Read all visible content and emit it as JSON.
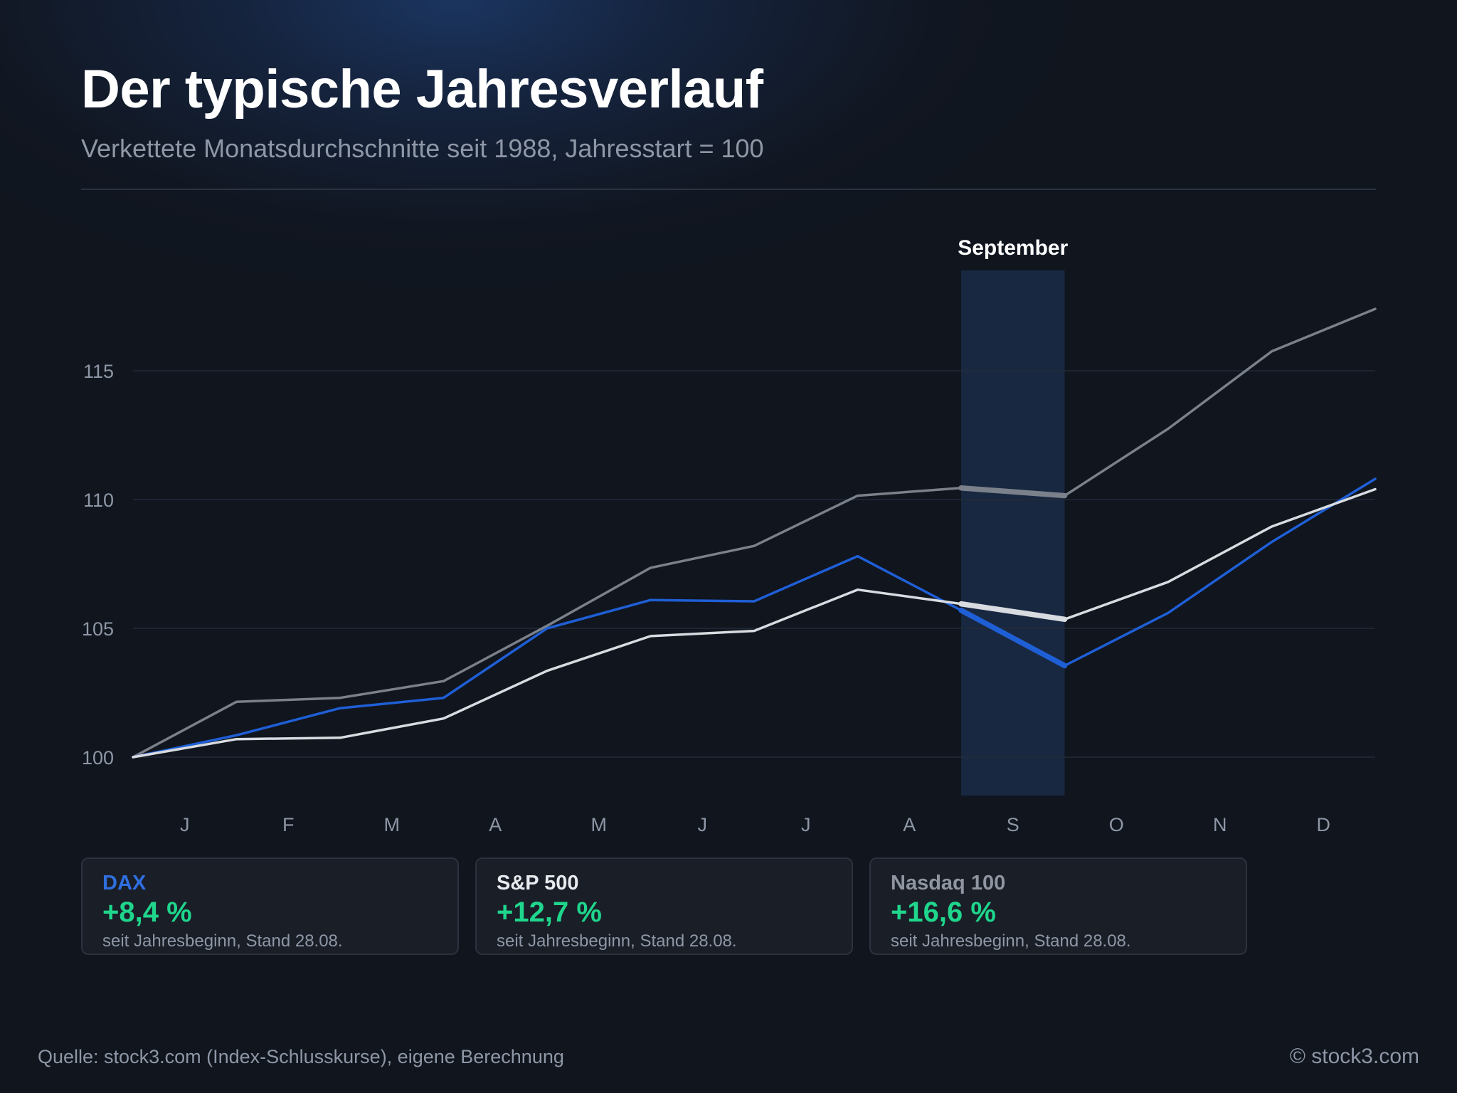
{
  "header": {
    "title": "Der typische Jahresverlauf",
    "subtitle": "Verkettete Monatsdurchschnitte seit 1988, Jahresstart = 100"
  },
  "chart_data": {
    "type": "line",
    "title": "Der typische Jahresverlauf",
    "subtitle": "Verkettete Monatsdurchschnitte seit 1988, Jahresstart = 100",
    "x_labels": [
      "J",
      "F",
      "M",
      "A",
      "M",
      "J",
      "J",
      "A",
      "S",
      "O",
      "N",
      "D"
    ],
    "y_ticks": [
      100,
      105,
      110,
      115
    ],
    "ylim": [
      98.5,
      119
    ],
    "grid": true,
    "highlight": {
      "label": "September",
      "month_index": 8
    },
    "series": [
      {
        "name": "Nasdaq 100",
        "color": "#7b818b",
        "values": [
          100,
          102.15,
          102.3,
          102.95,
          105.1,
          107.35,
          108.2,
          110.15,
          110.45,
          110.15,
          112.75,
          115.75,
          117.4
        ]
      },
      {
        "name": "DAX",
        "color": "#1f5fd6",
        "values": [
          100,
          100.85,
          101.9,
          102.3,
          105.0,
          106.1,
          106.05,
          107.8,
          105.7,
          103.55,
          105.6,
          108.35,
          110.8
        ]
      },
      {
        "name": "S&P 500",
        "color": "#d8dbe0",
        "values": [
          100,
          100.7,
          100.75,
          101.5,
          103.35,
          104.7,
          104.9,
          106.5,
          105.95,
          105.35,
          106.8,
          108.95,
          110.4
        ]
      }
    ]
  },
  "cards": [
    {
      "name": "DAX",
      "name_color": "#2f6fe0",
      "value": "+8,4 %",
      "note": "seit Jahresbeginn, Stand 28.08."
    },
    {
      "name": "S&P 500",
      "name_color": "#e8eaee",
      "value": "+12,7 %",
      "note": "seit Jahresbeginn, Stand 28.08."
    },
    {
      "name": "Nasdaq 100",
      "name_color": "#8f96a1",
      "value": "+16,6 %",
      "note": "seit Jahresbeginn, Stand 28.08."
    }
  ],
  "colors": {
    "positive": "#1fd68c",
    "highlight_band": "#1b2b48"
  },
  "footer": {
    "source": "Quelle: stock3.com (Index-Schlusskurse), eigene Berechnung",
    "copyright": "© stock3.com"
  }
}
